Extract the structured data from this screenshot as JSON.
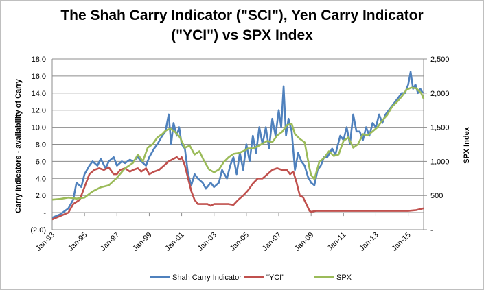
{
  "chart_data": {
    "type": "line",
    "title_line1": "The Shah Carry Indicator (\"SCI\"), Yen Carry Indicator",
    "title_line2": "(\"YCI\") vs SPX Index",
    "ylabel_left": "Carry Indicators - availability of Carry",
    "ylabel_right": "SPX Index",
    "ylim_left": [
      -2,
      18
    ],
    "ylim_right": [
      0,
      2500
    ],
    "yticks_left": [
      "(2.0)",
      "-",
      "2.0",
      "4.0",
      "6.0",
      "8.0",
      "10.0",
      "12.0",
      "14.0",
      "16.0",
      "18.0"
    ],
    "yticks_right": [
      "-",
      "500",
      "1,000",
      "1,500",
      "2,000",
      "2,500"
    ],
    "xticks": [
      "Jan-93",
      "Jan-95",
      "Jan-97",
      "Jan-99",
      "Jan-01",
      "Jan-03",
      "Jan-05",
      "Jan-07",
      "Jan-09",
      "Jan-11",
      "Jan-13",
      "Jan-15"
    ],
    "xlim": [
      1993.0,
      2015.95
    ],
    "grid": "horizontal",
    "legend_position": "bottom",
    "series": [
      {
        "name": "Shah Carry Indicator",
        "axis": "left",
        "color": "#4f81bd",
        "x": [
          1993.0,
          1993.5,
          1994.0,
          1994.3,
          1994.5,
          1994.8,
          1995.0,
          1995.3,
          1995.5,
          1995.8,
          1996.0,
          1996.3,
          1996.5,
          1996.8,
          1997.0,
          1997.3,
          1997.5,
          1997.8,
          1998.0,
          1998.3,
          1998.5,
          1998.8,
          1999.0,
          1999.3,
          1999.5,
          1999.8,
          2000.0,
          2000.2,
          2000.35,
          2000.5,
          2000.7,
          2000.85,
          2001.0,
          2001.2,
          2001.4,
          2001.6,
          2001.8,
          2002.0,
          2002.3,
          2002.5,
          2002.8,
          2003.0,
          2003.3,
          2003.5,
          2003.8,
          2004.0,
          2004.2,
          2004.4,
          2004.6,
          2004.8,
          2005.0,
          2005.2,
          2005.4,
          2005.6,
          2005.8,
          2006.0,
          2006.2,
          2006.4,
          2006.6,
          2006.8,
          2007.0,
          2007.15,
          2007.3,
          2007.45,
          2007.6,
          2007.8,
          2008.0,
          2008.2,
          2008.4,
          2008.6,
          2008.8,
          2009.0,
          2009.2,
          2009.4,
          2009.6,
          2009.8,
          2010.0,
          2010.3,
          2010.5,
          2010.8,
          2011.0,
          2011.2,
          2011.4,
          2011.6,
          2011.8,
          2012.0,
          2012.2,
          2012.4,
          2012.6,
          2012.8,
          2013.0,
          2013.2,
          2013.4,
          2013.6,
          2013.8,
          2014.0,
          2014.2,
          2014.4,
          2014.6,
          2014.8,
          2015.0,
          2015.15,
          2015.3,
          2015.45,
          2015.6,
          2015.75,
          2015.9
        ],
        "values": [
          -0.6,
          -0.2,
          0.5,
          1.5,
          3.5,
          3.0,
          4.5,
          5.5,
          6.0,
          5.5,
          6.3,
          5.2,
          6.0,
          6.5,
          5.5,
          6.0,
          5.8,
          6.2,
          6.0,
          6.5,
          6.0,
          5.5,
          6.5,
          7.5,
          8.0,
          9.0,
          9.5,
          11.5,
          8.0,
          10.5,
          9.0,
          10.0,
          8.0,
          7.5,
          4.5,
          3.2,
          4.5,
          4.0,
          3.5,
          2.8,
          3.5,
          3.0,
          3.5,
          5.0,
          4.0,
          5.5,
          6.5,
          4.5,
          7.0,
          5.0,
          8.0,
          6.0,
          9.0,
          7.0,
          10.0,
          8.0,
          10.0,
          7.5,
          11.0,
          9.0,
          12.0,
          10.0,
          14.8,
          9.0,
          11.0,
          9.5,
          5.0,
          7.0,
          6.0,
          5.5,
          4.2,
          3.5,
          3.2,
          5.0,
          5.5,
          6.5,
          6.5,
          7.5,
          6.8,
          9.0,
          8.5,
          10.0,
          8.0,
          11.5,
          9.5,
          9.5,
          8.5,
          10.0,
          9.0,
          10.5,
          10.0,
          11.5,
          10.5,
          11.5,
          12.0,
          12.5,
          13.0,
          13.5,
          14.0,
          14.0,
          15.0,
          16.5,
          14.5,
          15.0,
          14.0,
          14.5,
          14.0
        ]
      },
      {
        "name": "\"YCI\"",
        "axis": "left",
        "color": "#c0504d",
        "x": [
          1993.0,
          1993.5,
          1994.0,
          1994.3,
          1994.7,
          1995.0,
          1995.3,
          1995.6,
          1995.9,
          1996.2,
          1996.5,
          1996.8,
          1997.0,
          1997.2,
          1997.5,
          1997.8,
          1998.0,
          1998.3,
          1998.5,
          1998.8,
          1999.0,
          1999.3,
          1999.6,
          1999.9,
          2000.2,
          2000.5,
          2000.7,
          2000.9,
          2001.0,
          2001.2,
          2001.4,
          2001.6,
          2001.8,
          2002.0,
          2002.3,
          2002.6,
          2002.8,
          2003.0,
          2003.3,
          2003.6,
          2003.9,
          2004.2,
          2004.5,
          2004.8,
          2005.1,
          2005.4,
          2005.7,
          2006.0,
          2006.3,
          2006.6,
          2006.9,
          2007.2,
          2007.5,
          2007.7,
          2007.9,
          2008.1,
          2008.3,
          2008.5,
          2008.7,
          2008.9,
          2009.0,
          2009.3,
          2009.6,
          2010.0,
          2011.0,
          2012.0,
          2013.0,
          2014.0,
          2015.0,
          2015.5,
          2015.95
        ],
        "values": [
          -0.8,
          -0.4,
          0.0,
          1.0,
          1.5,
          3.0,
          4.5,
          5.0,
          5.2,
          5.0,
          5.3,
          4.5,
          4.5,
          5.0,
          5.2,
          4.8,
          5.0,
          5.2,
          4.8,
          5.2,
          4.5,
          4.8,
          5.0,
          5.5,
          6.0,
          6.3,
          6.5,
          6.2,
          6.5,
          5.5,
          4.0,
          2.5,
          1.5,
          1.0,
          1.0,
          1.0,
          0.8,
          1.0,
          1.0,
          1.0,
          1.0,
          0.9,
          1.5,
          2.0,
          2.6,
          3.4,
          4.0,
          4.0,
          4.5,
          5.0,
          5.2,
          5.0,
          5.0,
          4.5,
          4.8,
          3.5,
          2.0,
          1.8,
          1.0,
          0.2,
          0.1,
          0.2,
          0.2,
          0.2,
          0.2,
          0.2,
          0.2,
          0.2,
          0.2,
          0.3,
          0.5
        ]
      },
      {
        "name": "SPX",
        "axis": "right",
        "color": "#9bbb59",
        "x": [
          1993.0,
          1993.5,
          1994.0,
          1994.5,
          1995.0,
          1995.5,
          1996.0,
          1996.5,
          1997.0,
          1997.5,
          1998.0,
          1998.3,
          1998.6,
          1998.9,
          1999.2,
          1999.5,
          1999.8,
          2000.0,
          2000.3,
          2000.6,
          2000.9,
          2001.2,
          2001.5,
          2001.8,
          2002.1,
          2002.4,
          2002.7,
          2003.0,
          2003.3,
          2003.6,
          2003.9,
          2004.2,
          2004.5,
          2004.8,
          2005.1,
          2005.4,
          2005.7,
          2006.0,
          2006.3,
          2006.6,
          2006.9,
          2007.2,
          2007.5,
          2007.8,
          2008.0,
          2008.3,
          2008.6,
          2008.9,
          2009.0,
          2009.2,
          2009.5,
          2009.8,
          2010.1,
          2010.4,
          2010.7,
          2011.0,
          2011.3,
          2011.6,
          2011.9,
          2012.2,
          2012.5,
          2012.8,
          2013.1,
          2013.4,
          2013.7,
          2014.0,
          2014.3,
          2014.6,
          2014.9,
          2015.2,
          2015.5,
          2015.8,
          2015.95
        ],
        "values": [
          440,
          450,
          470,
          455,
          470,
          560,
          620,
          650,
          760,
          900,
          980,
          1100,
          1000,
          1200,
          1250,
          1350,
          1400,
          1450,
          1480,
          1430,
          1350,
          1200,
          1230,
          1100,
          1150,
          1000,
          880,
          840,
          880,
          990,
          1060,
          1110,
          1120,
          1150,
          1190,
          1190,
          1220,
          1260,
          1300,
          1280,
          1380,
          1430,
          1530,
          1550,
          1400,
          1330,
          1280,
          900,
          800,
          740,
          990,
          1050,
          1150,
          1080,
          1100,
          1300,
          1350,
          1200,
          1250,
          1400,
          1380,
          1440,
          1500,
          1600,
          1680,
          1800,
          1870,
          1950,
          2050,
          2080,
          2070,
          2000,
          1920
        ]
      }
    ]
  }
}
